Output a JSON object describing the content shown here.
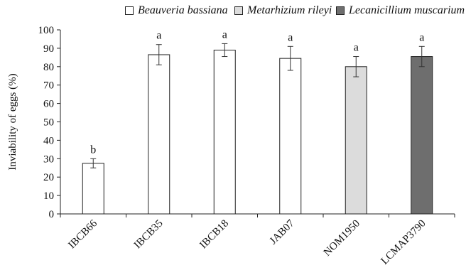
{
  "chart_data": {
    "type": "bar",
    "ylabel": "Inviability of eggs (%)",
    "xlabel": "",
    "ylim": [
      0,
      100
    ],
    "yticks": [
      0,
      10,
      20,
      30,
      40,
      50,
      60,
      70,
      80,
      90,
      100
    ],
    "grid": false,
    "legend_position": "top",
    "categories": [
      "IBCB66",
      "IBCB35",
      "IBCB18",
      "JAB07",
      "NOM1950",
      "LCMAP3790"
    ],
    "legend": [
      {
        "name": "Beauveria bassiana",
        "color": "#ffffff"
      },
      {
        "name": "Metarhizium rileyi",
        "color": "#dcdcdc"
      },
      {
        "name": "Lecanicillium muscarium",
        "color": "#6e6e6e"
      }
    ],
    "bars": [
      {
        "category": "IBCB66",
        "value": 27.5,
        "error": 2.5,
        "letter": "b",
        "species": "Beauveria bassiana"
      },
      {
        "category": "IBCB35",
        "value": 86.5,
        "error": 5.5,
        "letter": "a",
        "species": "Beauveria bassiana"
      },
      {
        "category": "IBCB18",
        "value": 89,
        "error": 3.5,
        "letter": "a",
        "species": "Beauveria bassiana"
      },
      {
        "category": "JAB07",
        "value": 84.5,
        "error": 6.5,
        "letter": "a",
        "species": "Beauveria bassiana"
      },
      {
        "category": "NOM1950",
        "value": 80,
        "error": 5.5,
        "letter": "a",
        "species": "Metarhizium rileyi"
      },
      {
        "category": "LCMAP3790",
        "value": 85.5,
        "error": 5.5,
        "letter": "a",
        "species": "Lecanicillium muscarium"
      }
    ]
  }
}
